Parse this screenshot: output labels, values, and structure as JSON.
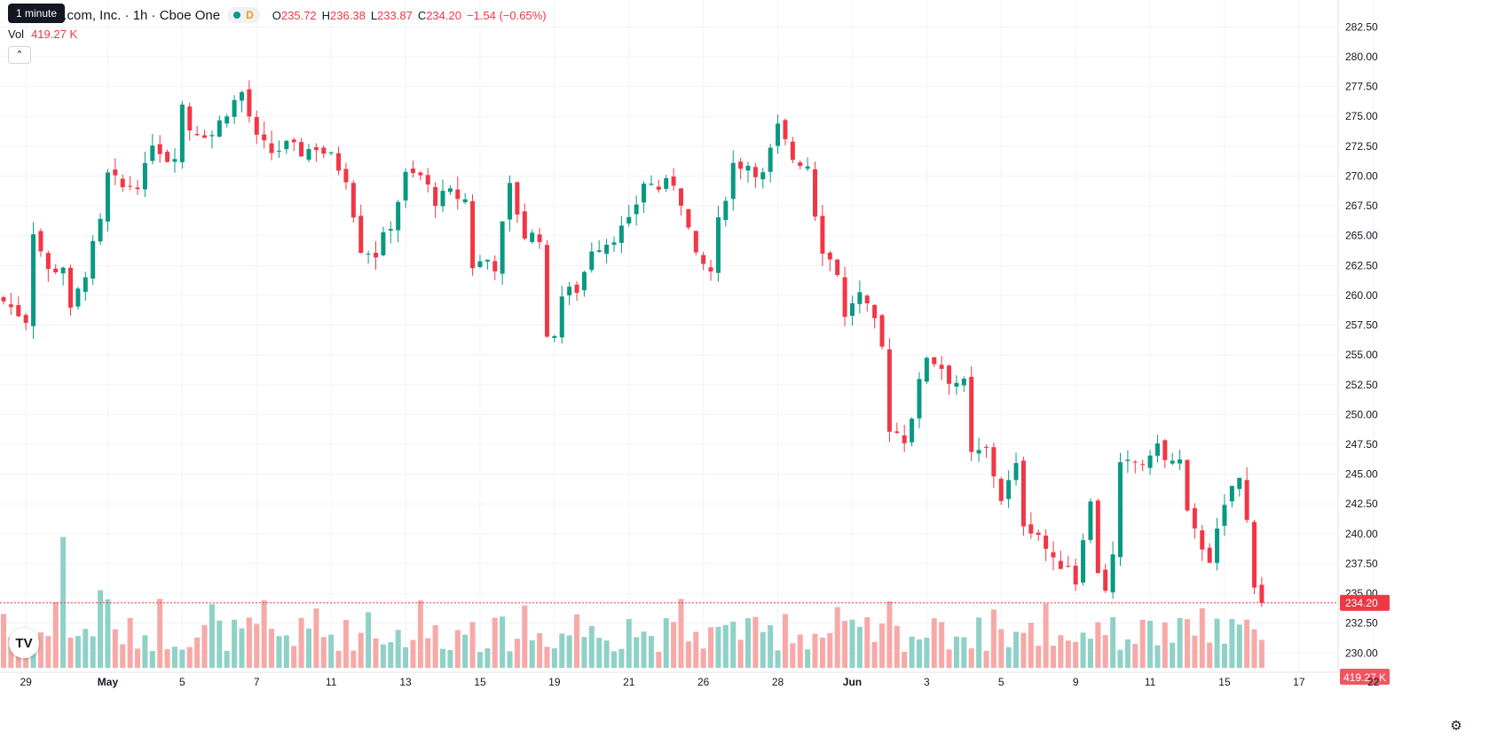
{
  "tooltip": "1 minute",
  "legend": {
    "symbol_title": "n.com, Inc. · 1h · Cboe One",
    "interval_badge": "D",
    "open_label": "O",
    "open": "235.72",
    "high_label": "H",
    "high": "236.38",
    "low_label": "L",
    "low": "233.87",
    "close_label": "C",
    "close": "234.20",
    "change": "−1.54 (−0.65%)"
  },
  "volume_legend": {
    "label": "Vol",
    "value": "419.27 K"
  },
  "collapse_icon": "chevron-up-icon",
  "logo_text": "TV",
  "settings_icon": "gear-icon",
  "colors": {
    "up": "#089981",
    "down": "#f23645",
    "up_vol": "#8fd1c7",
    "down_vol": "#f7a9a7",
    "grid": "#f0f3fa"
  },
  "price_labels": {
    "last_price": "234.20",
    "last_volume": "419.27 K"
  },
  "chart_data": {
    "type": "candlestick",
    "y_ticks": [
      "282.50",
      "280.00",
      "277.50",
      "275.00",
      "272.50",
      "270.00",
      "267.50",
      "265.00",
      "262.50",
      "260.00",
      "257.50",
      "255.00",
      "252.50",
      "250.00",
      "247.50",
      "245.00",
      "242.50",
      "240.00",
      "237.50",
      "235.00",
      "232.50",
      "230.00"
    ],
    "ylim": [
      229.5,
      283.2
    ],
    "x_ticks": [
      {
        "label": "29",
        "bar": 3
      },
      {
        "label": "May",
        "bar": 14
      },
      {
        "label": "5",
        "bar": 24
      },
      {
        "label": "7",
        "bar": 34
      },
      {
        "label": "11",
        "bar": 44
      },
      {
        "label": "13",
        "bar": 54
      },
      {
        "label": "15",
        "bar": 64
      },
      {
        "label": "19",
        "bar": 74
      },
      {
        "label": "21",
        "bar": 84
      },
      {
        "label": "26",
        "bar": 94
      },
      {
        "label": "28",
        "bar": 104
      },
      {
        "label": "Jun",
        "bar": 114
      },
      {
        "label": "3",
        "bar": 124
      },
      {
        "label": "5",
        "bar": 134
      },
      {
        "label": "9",
        "bar": 144
      },
      {
        "label": "11",
        "bar": 154
      },
      {
        "label": "15",
        "bar": 164
      },
      {
        "label": "17",
        "bar": 174
      },
      {
        "label": "22",
        "bar": 184
      }
    ],
    "close_anchors": [
      [
        0,
        259.5
      ],
      [
        3,
        258
      ],
      [
        4,
        265.5
      ],
      [
        6,
        262
      ],
      [
        8,
        262.5
      ],
      [
        9,
        258.5
      ],
      [
        11,
        262
      ],
      [
        13,
        266
      ],
      [
        14,
        270
      ],
      [
        16,
        269
      ],
      [
        18,
        269.5
      ],
      [
        19,
        270.5
      ],
      [
        20,
        273
      ],
      [
        22,
        271.5
      ],
      [
        23,
        272
      ],
      [
        24,
        276
      ],
      [
        25,
        274
      ],
      [
        28,
        273.5
      ],
      [
        30,
        275.5
      ],
      [
        32,
        277
      ],
      [
        34,
        273
      ],
      [
        36,
        272
      ],
      [
        38,
        272.5
      ],
      [
        40,
        272
      ],
      [
        42,
        272.5
      ],
      [
        44,
        271.5
      ],
      [
        46,
        270
      ],
      [
        48,
        264
      ],
      [
        50,
        263.5
      ],
      [
        52,
        266
      ],
      [
        54,
        270
      ],
      [
        56,
        270
      ],
      [
        58,
        268
      ],
      [
        60,
        268.5
      ],
      [
        62,
        268
      ],
      [
        63,
        262.5
      ],
      [
        65,
        263
      ],
      [
        66,
        262.5
      ],
      [
        68,
        269
      ],
      [
        70,
        265
      ],
      [
        72,
        265
      ],
      [
        73,
        256
      ],
      [
        74,
        257
      ],
      [
        75,
        260
      ],
      [
        77,
        260.5
      ],
      [
        78,
        262
      ],
      [
        79,
        264
      ],
      [
        81,
        264.5
      ],
      [
        82,
        265
      ],
      [
        84,
        266
      ],
      [
        86,
        269.5
      ],
      [
        88,
        269
      ],
      [
        90,
        269.5
      ],
      [
        91,
        268
      ],
      [
        93,
        263
      ],
      [
        95,
        262
      ],
      [
        96,
        266
      ],
      [
        98,
        271
      ],
      [
        100,
        271
      ],
      [
        102,
        270
      ],
      [
        104,
        274
      ],
      [
        106,
        271.5
      ],
      [
        108,
        271
      ],
      [
        109,
        267
      ],
      [
        110,
        264
      ],
      [
        112,
        262
      ],
      [
        113,
        258
      ],
      [
        114,
        259.5
      ],
      [
        115,
        260
      ],
      [
        117,
        257.5
      ],
      [
        118,
        255.5
      ],
      [
        119,
        249
      ],
      [
        121,
        248
      ],
      [
        122,
        250
      ],
      [
        124,
        255
      ],
      [
        126,
        254
      ],
      [
        127,
        253
      ],
      [
        129,
        252.5
      ],
      [
        130,
        246.5
      ],
      [
        132,
        247
      ],
      [
        133,
        245
      ],
      [
        134,
        243
      ],
      [
        136,
        245.5
      ],
      [
        137,
        241
      ],
      [
        139,
        240
      ],
      [
        141,
        237.5
      ],
      [
        143,
        237.5
      ],
      [
        144,
        236
      ],
      [
        145,
        240
      ],
      [
        146,
        242.5
      ],
      [
        147,
        237
      ],
      [
        148,
        235.5
      ],
      [
        149,
        238
      ],
      [
        150,
        245.5
      ],
      [
        152,
        246
      ],
      [
        154,
        246
      ],
      [
        155,
        248
      ],
      [
        156,
        246
      ],
      [
        158,
        246
      ],
      [
        159,
        241.5
      ],
      [
        160,
        240
      ],
      [
        162,
        238
      ],
      [
        163,
        240
      ],
      [
        165,
        244
      ],
      [
        166,
        244.5
      ],
      [
        167,
        241
      ],
      [
        168,
        236
      ],
      [
        169,
        234.2
      ]
    ],
    "volume_unit": "K"
  }
}
